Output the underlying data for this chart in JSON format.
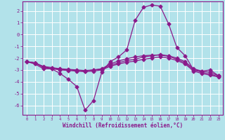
{
  "xlabel": "Windchill (Refroidissement éolien,°C)",
  "bg_color": "#b2e2ea",
  "grid_color": "#ffffff",
  "line_color": "#8b1a8b",
  "x_ticks": [
    0,
    1,
    2,
    3,
    4,
    5,
    6,
    7,
    8,
    9,
    10,
    11,
    12,
    13,
    14,
    15,
    16,
    17,
    18,
    19,
    20,
    21,
    22,
    23
  ],
  "y_ticks": [
    -6,
    -5,
    -4,
    -3,
    -2,
    -1,
    0,
    1,
    2
  ],
  "ylim": [
    -6.8,
    2.8
  ],
  "xlim": [
    -0.5,
    23.5
  ],
  "line1_x": [
    0,
    1,
    2,
    3,
    4,
    5,
    6,
    7,
    8,
    9,
    10,
    11,
    12,
    13,
    14,
    15,
    16,
    17,
    18,
    19,
    20,
    21,
    22,
    23
  ],
  "line1_y": [
    -2.3,
    -2.5,
    -2.9,
    -2.9,
    -3.3,
    -3.8,
    -4.4,
    -6.4,
    -5.6,
    -3.2,
    -2.3,
    -1.9,
    -1.3,
    1.2,
    2.3,
    2.5,
    2.4,
    0.9,
    -1.1,
    -1.8,
    -3.0,
    -3.1,
    -3.0,
    -3.5
  ],
  "line2_x": [
    0,
    1,
    2,
    3,
    4,
    5,
    6,
    7,
    8,
    9,
    10,
    11,
    12,
    13,
    14,
    15,
    16,
    17,
    18,
    19,
    20,
    21,
    22,
    23
  ],
  "line2_y": [
    -2.3,
    -2.4,
    -2.7,
    -2.8,
    -2.9,
    -2.95,
    -3.0,
    -3.05,
    -3.0,
    -2.95,
    -2.6,
    -2.4,
    -2.2,
    -2.1,
    -1.9,
    -1.8,
    -1.7,
    -1.8,
    -2.0,
    -2.3,
    -2.9,
    -3.1,
    -3.2,
    -3.5
  ],
  "line3_x": [
    0,
    1,
    2,
    3,
    4,
    5,
    6,
    7,
    8,
    9,
    10,
    11,
    12,
    13,
    14,
    15,
    16,
    17,
    18,
    19,
    20,
    21,
    22,
    23
  ],
  "line3_y": [
    -2.3,
    -2.4,
    -2.75,
    -2.85,
    -2.95,
    -3.0,
    -3.05,
    -3.1,
    -3.0,
    -2.9,
    -2.5,
    -2.25,
    -2.05,
    -1.9,
    -1.8,
    -1.75,
    -1.75,
    -1.85,
    -2.1,
    -2.4,
    -3.0,
    -3.2,
    -3.35,
    -3.55
  ],
  "line4_x": [
    0,
    1,
    2,
    3,
    4,
    5,
    6,
    7,
    8,
    9,
    10,
    11,
    12,
    13,
    14,
    15,
    16,
    17,
    18,
    19,
    20,
    21,
    22,
    23
  ],
  "line4_y": [
    -2.3,
    -2.4,
    -2.8,
    -2.9,
    -3.0,
    -3.05,
    -3.1,
    -3.15,
    -3.1,
    -3.0,
    -2.7,
    -2.5,
    -2.35,
    -2.25,
    -2.1,
    -2.0,
    -1.9,
    -2.0,
    -2.2,
    -2.5,
    -3.1,
    -3.3,
    -3.45,
    -3.6
  ]
}
